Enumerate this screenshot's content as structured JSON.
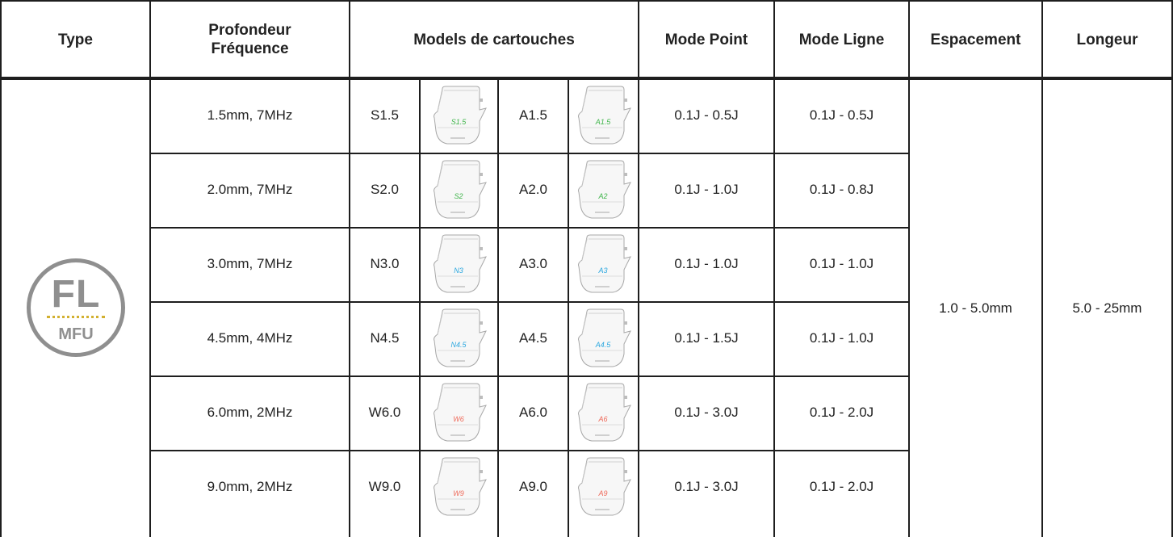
{
  "header": {
    "type": "Type",
    "depth_line1": "Profondeur",
    "depth_line2": "Fréquence",
    "models": "Models de cartouches",
    "mode_point": "Mode Point",
    "mode_ligne": "Mode Ligne",
    "espacement": "Espacement",
    "longeur": "Longeur"
  },
  "type_badge": {
    "main": "FL",
    "sub": "MFU"
  },
  "colors": {
    "border": "#1e1e1e",
    "badge_gray": "#8f8f8f",
    "badge_dots": "#d2b030",
    "label_green": "#3fb54a",
    "label_blue": "#2aa7df",
    "label_red": "#ef6a5a"
  },
  "rows": [
    {
      "depth": "1.5mm, 7MHz",
      "model_a": "S1.5",
      "cart_a_label": "S1.5",
      "model_b": "A1.5",
      "cart_b_label": "A1.5",
      "label_color": "#3fb54a",
      "mode_point": "0.1J - 0.5J",
      "mode_ligne": "0.1J - 0.5J"
    },
    {
      "depth": "2.0mm, 7MHz",
      "model_a": "S2.0",
      "cart_a_label": "S2",
      "model_b": "A2.0",
      "cart_b_label": "A2",
      "label_color": "#3fb54a",
      "mode_point": "0.1J - 1.0J",
      "mode_ligne": "0.1J - 0.8J"
    },
    {
      "depth": "3.0mm, 7MHz",
      "model_a": "N3.0",
      "cart_a_label": "N3",
      "model_b": "A3.0",
      "cart_b_label": "A3",
      "label_color": "#2aa7df",
      "mode_point": "0.1J - 1.0J",
      "mode_ligne": "0.1J - 1.0J"
    },
    {
      "depth": "4.5mm, 4MHz",
      "model_a": "N4.5",
      "cart_a_label": "N4.5",
      "model_b": "A4.5",
      "cart_b_label": "A4.5",
      "label_color": "#2aa7df",
      "mode_point": "0.1J - 1.5J",
      "mode_ligne": "0.1J - 1.0J"
    },
    {
      "depth": "6.0mm, 2MHz",
      "model_a": "W6.0",
      "cart_a_label": "W6",
      "model_b": "A6.0",
      "cart_b_label": "A6",
      "label_color": "#ef6a5a",
      "mode_point": "0.1J - 3.0J",
      "mode_ligne": "0.1J - 2.0J"
    },
    {
      "depth": "9.0mm, 2MHz",
      "model_a": "W9.0",
      "cart_a_label": "W9",
      "model_b": "A9.0",
      "cart_b_label": "A9",
      "label_color": "#ef6a5a",
      "mode_point": "0.1J - 3.0J",
      "mode_ligne": "0.1J - 2.0J"
    }
  ],
  "espacement_value": "1.0 - 5.0mm",
  "longeur_value": "5.0 - 25mm"
}
